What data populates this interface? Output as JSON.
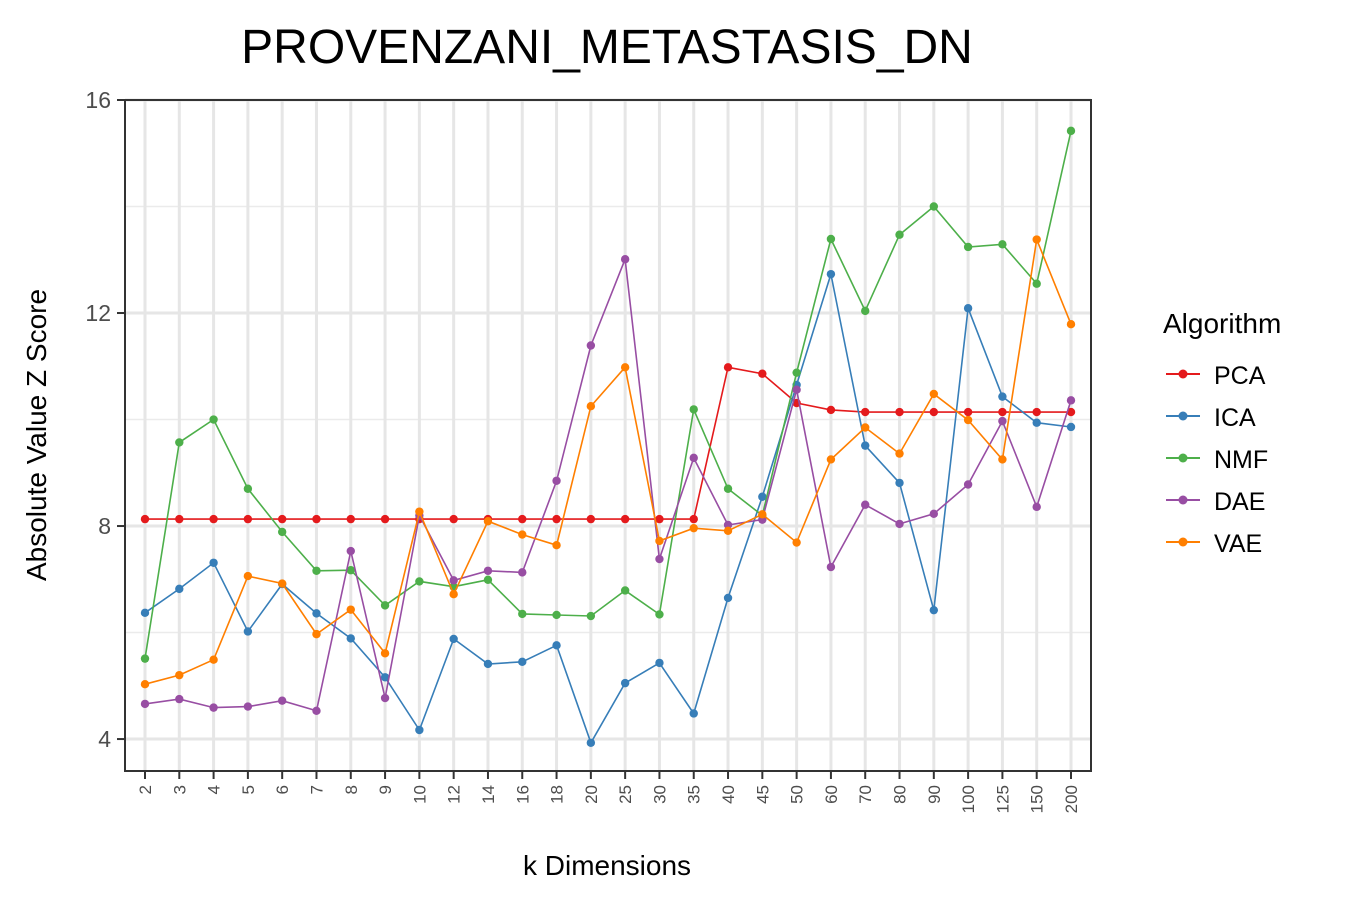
{
  "chart_data": {
    "type": "line",
    "title": "PROVENZANI_METASTASIS_DN",
    "xlabel": "k Dimensions",
    "ylabel": "Absolute Value Z Score",
    "categories": [
      "2",
      "3",
      "4",
      "5",
      "6",
      "7",
      "8",
      "9",
      "10",
      "12",
      "14",
      "16",
      "18",
      "20",
      "25",
      "30",
      "35",
      "40",
      "45",
      "50",
      "60",
      "70",
      "80",
      "90",
      "100",
      "125",
      "150",
      "200"
    ],
    "ylim": [
      3.4,
      16
    ],
    "yticks": [
      4,
      8,
      12,
      16
    ],
    "grid": true,
    "legend": {
      "title": "Algorithm",
      "position": "right"
    },
    "series": [
      {
        "name": "PCA",
        "color": "#e41a1c",
        "values": [
          8.13,
          8.13,
          8.13,
          8.13,
          8.13,
          8.13,
          8.13,
          8.13,
          8.13,
          8.13,
          8.13,
          8.13,
          8.13,
          8.13,
          8.13,
          8.13,
          8.13,
          10.98,
          10.86,
          10.31,
          10.18,
          10.14,
          10.14,
          10.14,
          10.14,
          10.14,
          10.14,
          10.14
        ]
      },
      {
        "name": "ICA",
        "color": "#377eb8",
        "values": [
          6.37,
          6.82,
          7.31,
          6.02,
          6.91,
          6.36,
          5.89,
          5.16,
          4.17,
          5.88,
          5.41,
          5.45,
          5.76,
          3.93,
          5.05,
          5.43,
          4.48,
          6.65,
          8.55,
          10.65,
          12.73,
          9.51,
          8.81,
          6.42,
          12.09,
          10.43,
          9.94,
          9.86
        ]
      },
      {
        "name": "NMF",
        "color": "#4daf4a",
        "values": [
          5.51,
          9.57,
          10.0,
          8.7,
          7.89,
          7.16,
          7.17,
          6.51,
          6.96,
          6.86,
          6.99,
          6.35,
          6.33,
          6.31,
          6.79,
          6.34,
          10.19,
          8.7,
          8.2,
          10.88,
          13.39,
          12.04,
          13.47,
          14.0,
          13.24,
          13.29,
          12.55,
          15.42
        ]
      },
      {
        "name": "DAE",
        "color": "#984ea3",
        "values": [
          4.66,
          4.75,
          4.59,
          4.61,
          4.72,
          4.53,
          7.53,
          4.77,
          8.2,
          6.98,
          7.16,
          7.13,
          8.85,
          11.39,
          13.01,
          7.38,
          9.28,
          8.02,
          8.12,
          10.56,
          7.23,
          8.4,
          8.04,
          8.23,
          8.78,
          9.97,
          8.36,
          10.36
        ]
      },
      {
        "name": "VAE",
        "color": "#ff7f00",
        "values": [
          5.03,
          5.2,
          5.49,
          7.06,
          6.92,
          5.97,
          6.43,
          5.61,
          8.27,
          6.72,
          8.09,
          7.84,
          7.64,
          10.25,
          10.98,
          7.72,
          7.96,
          7.91,
          8.22,
          7.69,
          9.25,
          9.85,
          9.36,
          10.48,
          9.99,
          9.25,
          13.38,
          11.79
        ]
      }
    ]
  }
}
